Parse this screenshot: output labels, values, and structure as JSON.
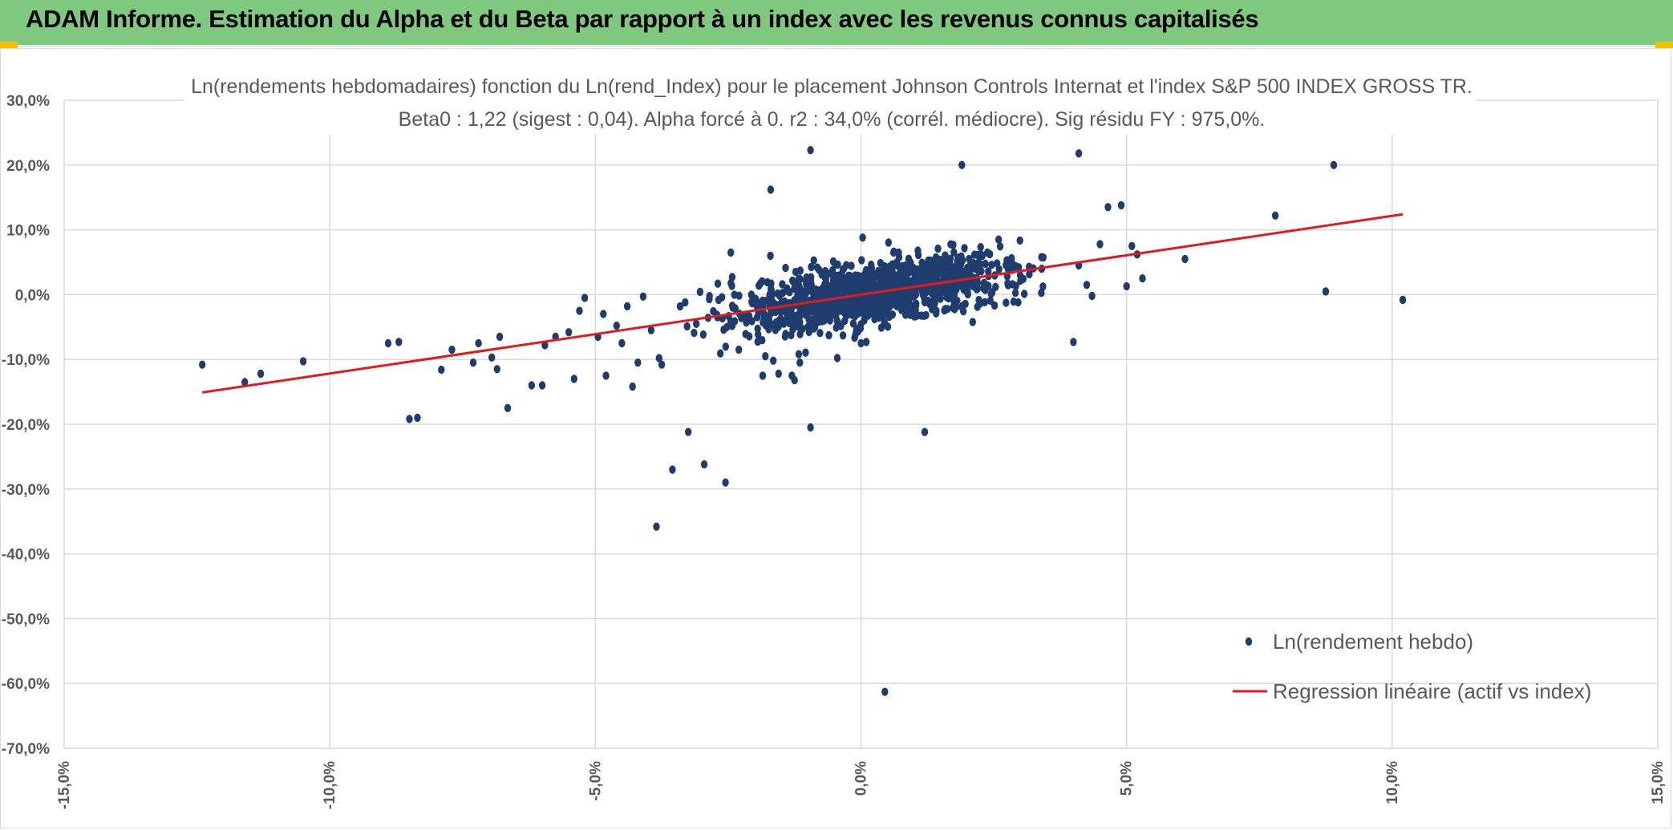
{
  "header": {
    "title": "ADAM Informe. Estimation du Alpha et du Beta par rapport à un index avec les revenus connus capitalisés"
  },
  "colors": {
    "header_bg": "#7fc97f",
    "points": "#1f3c6e",
    "regression": "#e31a1c",
    "grid": "#d9d9d9"
  },
  "chart_data": {
    "type": "scatter",
    "title": "Ln(rendements hebdomadaires) fonction du Ln(rend_Index) pour le placement Johnson Controls Internat et l'index S&P 500 INDEX GROSS TR.",
    "subtitle": "Beta0 : 1,22 (sigest : 0,04). Alpha forcé à 0. r2 : 34,0% (corrél. médiocre). Sig résidu FY : 975,0%.",
    "xlabel": "",
    "ylabel": "",
    "xlim": [
      -15,
      15
    ],
    "ylim": [
      -70,
      30
    ],
    "x_ticks": [
      -15,
      -10,
      -5,
      0,
      5,
      10,
      15
    ],
    "y_ticks": [
      30,
      20,
      10,
      0,
      -10,
      -20,
      -30,
      -40,
      -50,
      -60,
      -70
    ],
    "x_tick_labels": [
      "-15,0%",
      "-10,0%",
      "-5,0%",
      "0,0%",
      "5,0%",
      "10,0%",
      "15,0%"
    ],
    "y_tick_labels": [
      "30,0%",
      "20,0%",
      "10,0%",
      "0,0%",
      "-10,0%",
      "-20,0%",
      "-30,0%",
      "-40,0%",
      "-50,0%",
      "-60,0%",
      "-70,0%"
    ],
    "grid": true,
    "legend_position": "bottom-right",
    "series": [
      {
        "name": "Ln(rendement hebdo)",
        "type": "scatter",
        "points": [
          [
            -12.4,
            -10.8
          ],
          [
            -11.6,
            -13.5
          ],
          [
            -11.3,
            -12.2
          ],
          [
            -10.5,
            -10.3
          ],
          [
            -8.9,
            -7.5
          ],
          [
            -8.7,
            -7.3
          ],
          [
            -8.5,
            -19.2
          ],
          [
            -8.35,
            -19.0
          ],
          [
            -7.9,
            -11.6
          ],
          [
            -7.7,
            -8.5
          ],
          [
            -7.3,
            -10.5
          ],
          [
            -7.2,
            -7.5
          ],
          [
            -6.95,
            -9.7
          ],
          [
            -6.85,
            -11.5
          ],
          [
            -6.8,
            -6.5
          ],
          [
            -6.65,
            -17.5
          ],
          [
            -6.2,
            -14.0
          ],
          [
            -6.0,
            -14.0
          ],
          [
            -5.95,
            -7.8
          ],
          [
            -5.75,
            -6.5
          ],
          [
            -5.5,
            -5.8
          ],
          [
            -5.4,
            -13.0
          ],
          [
            -5.3,
            -2.5
          ],
          [
            -5.2,
            -0.5
          ],
          [
            -4.95,
            -6.5
          ],
          [
            -4.85,
            -3.0
          ],
          [
            -4.8,
            -12.5
          ],
          [
            -4.6,
            -4.8
          ],
          [
            -4.5,
            -7.5
          ],
          [
            -4.4,
            -1.8
          ],
          [
            -4.3,
            -14.2
          ],
          [
            -4.2,
            -10.5
          ],
          [
            -4.1,
            -0.3
          ],
          [
            -3.95,
            -5.5
          ],
          [
            -3.8,
            -9.8
          ],
          [
            -3.75,
            -10.8
          ],
          [
            -3.85,
            -35.8
          ],
          [
            -3.55,
            -27.0
          ],
          [
            -3.25,
            -21.2
          ],
          [
            -3.1,
            -4.5
          ],
          [
            -2.95,
            -26.2
          ],
          [
            -2.7,
            -3.5
          ],
          [
            -2.55,
            -29.0
          ],
          [
            -2.45,
            6.5
          ],
          [
            -2.3,
            -8.5
          ],
          [
            -1.85,
            -12.5
          ],
          [
            -1.8,
            -9.5
          ],
          [
            -1.65,
            -10.2
          ],
          [
            -1.55,
            -12.2
          ],
          [
            -1.3,
            -12.5
          ],
          [
            -1.25,
            -13.2
          ],
          [
            -1.15,
            -10.5
          ],
          [
            -1.7,
            16.2
          ],
          [
            -0.95,
            22.3
          ],
          [
            -0.95,
            -20.5
          ],
          [
            0.0,
            -7.5
          ],
          [
            0.45,
            -61.3
          ],
          [
            1.2,
            -21.2
          ],
          [
            1.9,
            20.0
          ],
          [
            4.1,
            21.8
          ],
          [
            4.0,
            -7.3
          ],
          [
            4.1,
            4.5
          ],
          [
            4.25,
            1.5
          ],
          [
            4.35,
            -0.2
          ],
          [
            4.5,
            7.8
          ],
          [
            4.65,
            13.5
          ],
          [
            4.9,
            13.8
          ],
          [
            5.0,
            1.3
          ],
          [
            5.1,
            7.5
          ],
          [
            5.2,
            6.2
          ],
          [
            5.3,
            2.5
          ],
          [
            6.1,
            5.5
          ],
          [
            7.8,
            12.2
          ],
          [
            8.75,
            0.5
          ],
          [
            8.9,
            20.0
          ],
          [
            10.2,
            -0.8
          ]
        ],
        "cluster": {
          "count": 1150,
          "slope": 1.22,
          "x_range": [
            -3.5,
            3.5
          ],
          "x_spread_sd": 1.3,
          "residual_sd": 2.3
        }
      },
      {
        "name": "Regression linéaire (actif vs index)",
        "type": "line",
        "x": [
          -12.4,
          10.2
        ],
        "y": [
          -15.1,
          12.4
        ]
      }
    ]
  }
}
